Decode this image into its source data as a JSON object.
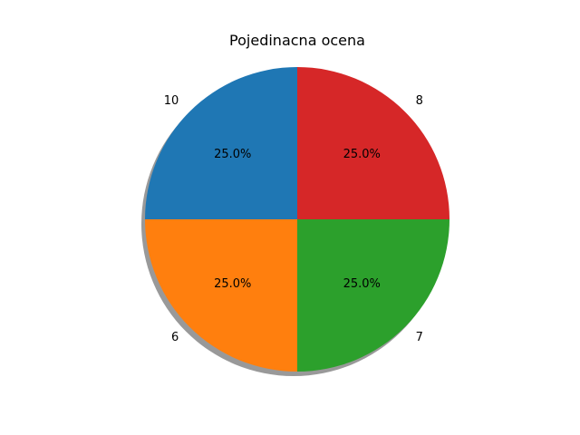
{
  "chart_data": {
    "type": "pie",
    "title": "Pojedinacna ocena",
    "slices": [
      {
        "label": "10",
        "value": 25.0,
        "percent_label": "25.0%",
        "color": "#1f77b4"
      },
      {
        "label": "6",
        "value": 25.0,
        "percent_label": "25.0%",
        "color": "#ff7f0e"
      },
      {
        "label": "7",
        "value": 25.0,
        "percent_label": "25.0%",
        "color": "#2ca02c"
      },
      {
        "label": "8",
        "value": 25.0,
        "percent_label": "25.0%",
        "color": "#d62728"
      }
    ],
    "start_angle_deg": 90,
    "direction": "counterclockwise",
    "shadow": true,
    "shadow_color": "#999999"
  }
}
